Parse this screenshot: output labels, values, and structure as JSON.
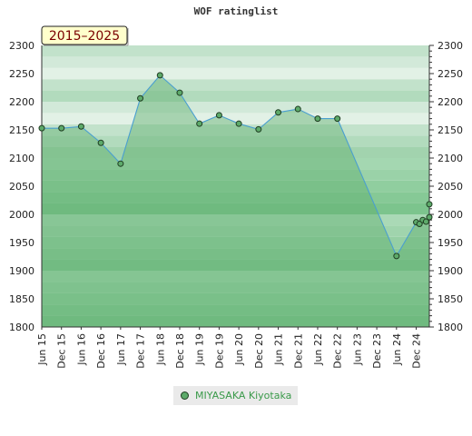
{
  "chart_data": {
    "type": "area",
    "title": "WOF ratinglist",
    "badge": "2015–2025",
    "ylim": [
      1800,
      2300
    ],
    "y_ticks": [
      1800,
      1850,
      1900,
      1950,
      2000,
      2050,
      2100,
      2150,
      2200,
      2250,
      2300
    ],
    "x_range": [
      "2015-06",
      "2025-04"
    ],
    "x_ticks": [
      "Jun 15",
      "Dec 15",
      "Jun 16",
      "Dec 16",
      "Jun 17",
      "Dec 17",
      "Jun 18",
      "Dec 18",
      "Jun 19",
      "Dec 19",
      "Jun 20",
      "Dec 20",
      "Jun 21",
      "Dec 21",
      "Jun 22",
      "Dec 22",
      "Jun 23",
      "Dec 23",
      "Jun 24",
      "Dec 24"
    ],
    "series": [
      {
        "name": "MIYASAKA Kiyotaka",
        "color": "#5daa6a",
        "points": [
          [
            "2015-06",
            2153
          ],
          [
            "2015-12",
            2153
          ],
          [
            "2016-06",
            2156
          ],
          [
            "2016-12",
            2127
          ],
          [
            "2017-06",
            2090
          ],
          [
            "2017-12",
            2206
          ],
          [
            "2018-06",
            2247
          ],
          [
            "2018-12",
            2216
          ],
          [
            "2019-06",
            2161
          ],
          [
            "2019-12",
            2176
          ],
          [
            "2020-06",
            2161
          ],
          [
            "2020-12",
            2151
          ],
          [
            "2021-06",
            2181
          ],
          [
            "2021-12",
            2187
          ],
          [
            "2022-06",
            2170
          ],
          [
            "2022-12",
            2170
          ],
          [
            "2024-06",
            1926
          ],
          [
            "2024-12",
            1986
          ],
          [
            "2025-01",
            1983
          ],
          [
            "2025-02",
            1990
          ],
          [
            "2025-03",
            1987
          ],
          [
            "2025-04",
            1995
          ],
          [
            "2025-06",
            2018
          ]
        ]
      }
    ],
    "legend": "bottom-center"
  }
}
